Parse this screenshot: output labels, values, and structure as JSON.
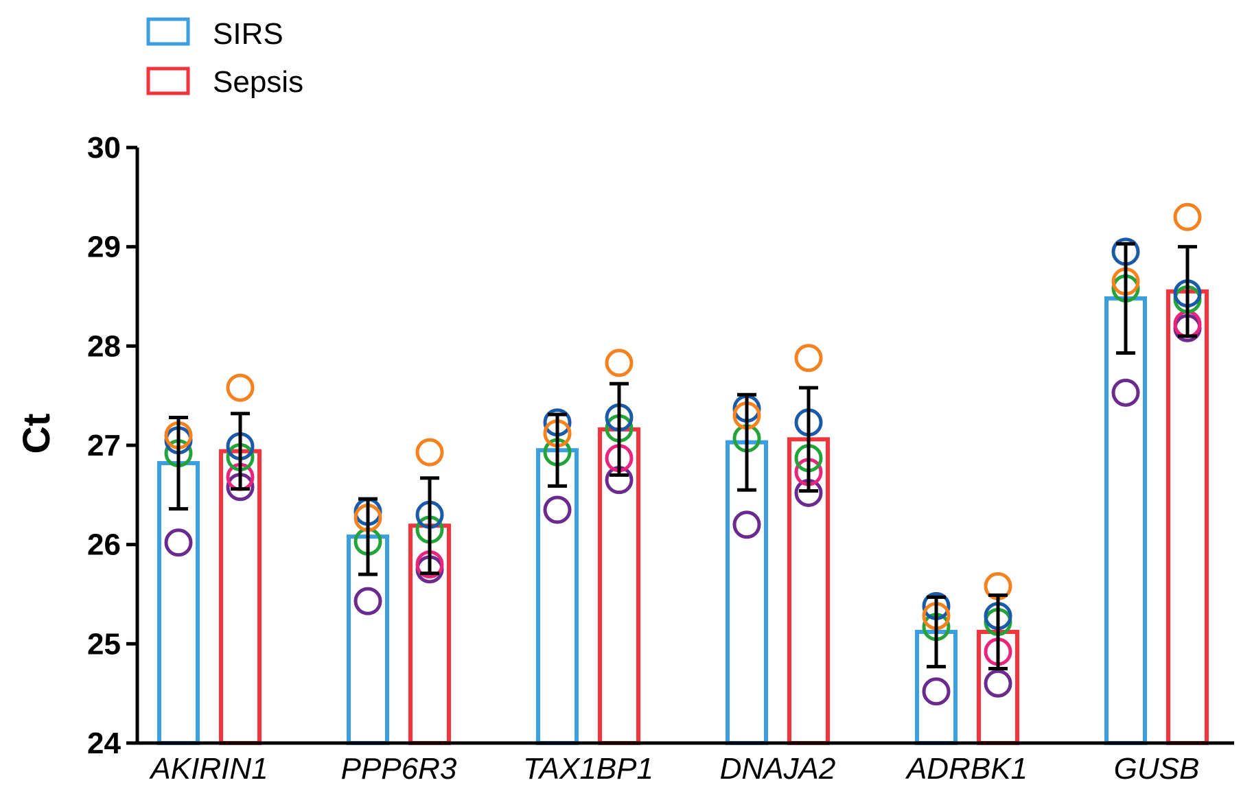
{
  "chart_data": {
    "type": "bar",
    "title": "",
    "xlabel": "",
    "ylabel": "Ct",
    "ylim": [
      24,
      30
    ],
    "yticks": [
      24,
      25,
      26,
      27,
      28,
      29,
      30
    ],
    "categories": [
      "AKIRIN1",
      "PPP6R3",
      "TAX1BP1",
      "DNAJA2",
      "ADRBK1",
      "GUSB"
    ],
    "series": [
      {
        "name": "SIRS",
        "color": "#3b9ee0",
        "values": [
          26.82,
          26.08,
          26.95,
          27.03,
          25.12,
          28.48
        ],
        "error": [
          0.46,
          0.38,
          0.36,
          0.48,
          0.35,
          0.55
        ],
        "points": [
          [
            26.02,
            26.92,
            27.05,
            27.1
          ],
          [
            25.43,
            26.03,
            26.33,
            26.27
          ],
          [
            26.35,
            26.93,
            27.23,
            27.12
          ],
          [
            26.2,
            27.07,
            27.37,
            27.3
          ],
          [
            24.52,
            25.17,
            25.38,
            25.28
          ],
          [
            27.53,
            28.58,
            28.95,
            28.65
          ]
        ]
      },
      {
        "name": "Sepsis",
        "color": "#f2353d",
        "values": [
          26.94,
          26.19,
          27.16,
          27.06,
          25.12,
          28.55
        ],
        "error": [
          0.38,
          0.48,
          0.46,
          0.52,
          0.37,
          0.45
        ],
        "points": [
          [
            26.58,
            26.68,
            26.88,
            26.99,
            27.58
          ],
          [
            25.75,
            25.8,
            26.15,
            26.3,
            26.93
          ],
          [
            26.65,
            26.87,
            27.17,
            27.28,
            27.83
          ],
          [
            26.52,
            26.73,
            26.87,
            27.23,
            27.88
          ],
          [
            24.6,
            24.92,
            25.22,
            25.28,
            25.58
          ],
          [
            28.18,
            28.22,
            28.47,
            28.53,
            29.3
          ]
        ]
      }
    ],
    "point_colors": [
      "#6a2a8e",
      "#e8257d",
      "#24a33a",
      "#1b5aa6",
      "#f58220"
    ],
    "legend": [
      {
        "label": "SIRS",
        "color": "#3b9ee0"
      },
      {
        "label": "Sepsis",
        "color": "#f2353d"
      }
    ],
    "legend_position": "top-left",
    "grid": false
  }
}
